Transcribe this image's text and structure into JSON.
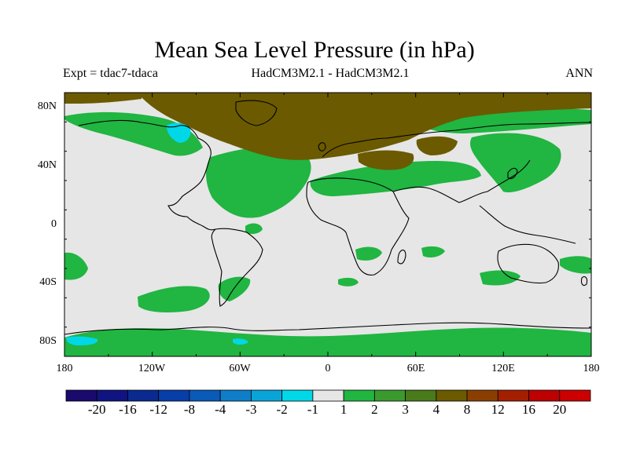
{
  "title": "Mean Sea Level Pressure (in hPa)",
  "subtitle_left": "Expt = tdac7-tdaca",
  "subtitle_center": "HadCM3M2.1 - HadCM3M2.1",
  "subtitle_right": "ANN",
  "map": {
    "projection": "equirectangular",
    "lon_range": [
      -180,
      180
    ],
    "lat_range": [
      -90,
      90
    ],
    "background_color": "#e6e6e6",
    "lat_ticks": [
      "80N",
      "40N",
      "0",
      "40S",
      "80S"
    ],
    "lon_ticks": [
      "180",
      "120W",
      "60W",
      "0",
      "60E",
      "120E",
      "180"
    ],
    "fields": [
      {
        "level": "1 to 2",
        "color": "#21b542",
        "regions": [
          "North Atlantic",
          "North Pacific",
          "Eurasia south",
          "Pacific Northwest",
          "Southern Ocean patches",
          "South Atlantic",
          "Indian Ocean"
        ]
      },
      {
        "level": "4 to 8",
        "color": "#6b5a00",
        "regions": [
          "Arctic Ocean",
          "Greenland",
          "Europe",
          "Siberia",
          "Central Asia"
        ]
      },
      {
        "level": "-2 to -1",
        "color": "#00d8e8",
        "regions": [
          "Hudson Bay",
          "Ross Sea coast"
        ]
      }
    ]
  },
  "colorbar": {
    "labels": [
      "-20",
      "-16",
      "-12",
      "-8",
      "-4",
      "-3",
      "-2",
      "-1",
      "1",
      "2",
      "3",
      "4",
      "8",
      "12",
      "16",
      "20"
    ],
    "colors": [
      "#1a0a6e",
      "#0f1480",
      "#0a2a90",
      "#083ea8",
      "#0a5ab8",
      "#0f7ec8",
      "#0aa5d8",
      "#00d8e8",
      "#e6e6e6",
      "#21b542",
      "#3b9a2e",
      "#4a7a1a",
      "#6b5a00",
      "#8a3f00",
      "#a31f00",
      "#bd0000",
      "#cc0000"
    ]
  }
}
